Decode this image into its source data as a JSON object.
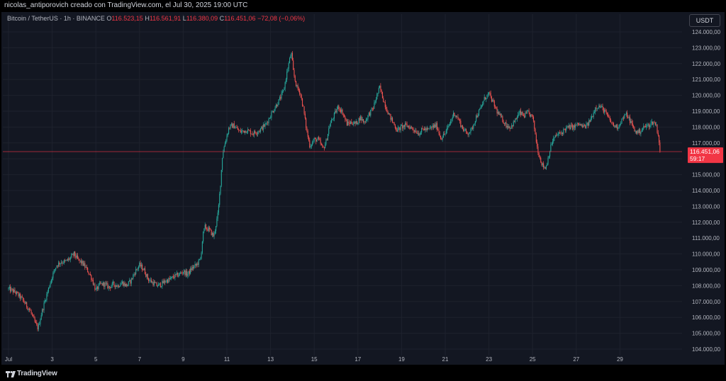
{
  "header": {
    "credit": "nicolas_antiporovich creado con TradingView.com, el Jul 30, 2025 19:00 UTC"
  },
  "legend": {
    "symbol": "Bitcoin / TetherUS · 1h · BINANCE",
    "o_label": "O",
    "o": "116.523,15",
    "h_label": "H",
    "h": "116.561,91",
    "l_label": "L",
    "l": "116.380,09",
    "c_label": "C",
    "c": "116.451,06",
    "change": "−72,08 (−0,06%)"
  },
  "currency_button": "USDT",
  "last_price": {
    "value": 116451.06,
    "label": "116.451,06",
    "countdown": "59:17"
  },
  "footer": {
    "brand": "TradingView"
  },
  "colors": {
    "up": "#26a69a",
    "down": "#ef5350",
    "price_tag": "#f23645",
    "background": "#131722",
    "grid": "#1e222d",
    "axis_text": "#b2b5be"
  },
  "chart_data": {
    "type": "candlestick",
    "timeframe": "1h",
    "x_labels": [
      "Jul",
      "3",
      "5",
      "7",
      "9",
      "11",
      "13",
      "15",
      "17",
      "19",
      "21",
      "23",
      "25",
      "27",
      "29"
    ],
    "y_ticks": [
      "104.000,00",
      "105.000,00",
      "106.000,00",
      "107.000,00",
      "108.000,00",
      "109.000,00",
      "110.000,00",
      "111.000,00",
      "112.000,00",
      "113.000,00",
      "114.000,00",
      "115.000,00",
      "116.000,00",
      "117.000,00",
      "118.000,00",
      "119.000,00",
      "120.000,00",
      "121.000,00",
      "122.000,00",
      "123.000,00",
      "124.000,00"
    ],
    "ylim": [
      103600,
      124400
    ],
    "xlim_days": [
      1,
      31
    ],
    "close_path": [
      [
        1.0,
        107800
      ],
      [
        1.3,
        107600
      ],
      [
        1.6,
        107200
      ],
      [
        1.8,
        106800
      ],
      [
        2.0,
        106400
      ],
      [
        2.2,
        105700
      ],
      [
        2.35,
        105300
      ],
      [
        2.5,
        106200
      ],
      [
        2.7,
        107200
      ],
      [
        2.85,
        107900
      ],
      [
        3.0,
        108600
      ],
      [
        3.2,
        109300
      ],
      [
        3.4,
        109500
      ],
      [
        3.6,
        109500
      ],
      [
        3.8,
        109700
      ],
      [
        4.0,
        110000
      ],
      [
        4.2,
        109600
      ],
      [
        4.4,
        109400
      ],
      [
        4.6,
        109000
      ],
      [
        4.8,
        108500
      ],
      [
        5.0,
        107700
      ],
      [
        5.2,
        108100
      ],
      [
        5.4,
        108100
      ],
      [
        5.6,
        107900
      ],
      [
        5.8,
        108100
      ],
      [
        6.0,
        108000
      ],
      [
        6.2,
        108200
      ],
      [
        6.4,
        108000
      ],
      [
        6.6,
        108300
      ],
      [
        6.8,
        108900
      ],
      [
        7.0,
        109300
      ],
      [
        7.2,
        109000
      ],
      [
        7.4,
        108400
      ],
      [
        7.6,
        108200
      ],
      [
        7.8,
        108000
      ],
      [
        8.0,
        108100
      ],
      [
        8.2,
        108300
      ],
      [
        8.4,
        108400
      ],
      [
        8.6,
        108600
      ],
      [
        8.8,
        108700
      ],
      [
        9.0,
        108900
      ],
      [
        9.2,
        108700
      ],
      [
        9.4,
        109100
      ],
      [
        9.6,
        109300
      ],
      [
        9.8,
        109700
      ],
      [
        9.9,
        111200
      ],
      [
        10.0,
        111700
      ],
      [
        10.2,
        111500
      ],
      [
        10.4,
        111100
      ],
      [
        10.6,
        112600
      ],
      [
        10.7,
        114300
      ],
      [
        10.8,
        116300
      ],
      [
        10.95,
        117200
      ],
      [
        11.1,
        118000
      ],
      [
        11.3,
        118100
      ],
      [
        11.6,
        117700
      ],
      [
        11.9,
        117800
      ],
      [
        12.2,
        117600
      ],
      [
        12.5,
        117800
      ],
      [
        12.8,
        118200
      ],
      [
        13.1,
        119000
      ],
      [
        13.4,
        119700
      ],
      [
        13.6,
        120300
      ],
      [
        13.8,
        121800
      ],
      [
        13.95,
        122700
      ],
      [
        14.05,
        121400
      ],
      [
        14.2,
        120500
      ],
      [
        14.35,
        120200
      ],
      [
        14.5,
        119200
      ],
      [
        14.65,
        117800
      ],
      [
        14.8,
        116800
      ],
      [
        15.0,
        117200
      ],
      [
        15.2,
        117200
      ],
      [
        15.4,
        116600
      ],
      [
        15.55,
        117100
      ],
      [
        15.7,
        118100
      ],
      [
        15.9,
        118700
      ],
      [
        16.1,
        119300
      ],
      [
        16.3,
        118900
      ],
      [
        16.5,
        118200
      ],
      [
        16.7,
        118300
      ],
      [
        16.9,
        118200
      ],
      [
        17.1,
        118600
      ],
      [
        17.3,
        118300
      ],
      [
        17.5,
        118800
      ],
      [
        17.7,
        119200
      ],
      [
        17.85,
        119900
      ],
      [
        18.0,
        120500
      ],
      [
        18.15,
        119800
      ],
      [
        18.3,
        119200
      ],
      [
        18.45,
        118700
      ],
      [
        18.6,
        118300
      ],
      [
        18.8,
        117800
      ],
      [
        19.0,
        118000
      ],
      [
        19.2,
        118100
      ],
      [
        19.4,
        118000
      ],
      [
        19.6,
        117800
      ],
      [
        19.8,
        117600
      ],
      [
        20.0,
        117900
      ],
      [
        20.2,
        117800
      ],
      [
        20.4,
        118000
      ],
      [
        20.6,
        118100
      ],
      [
        20.8,
        117300
      ],
      [
        21.0,
        117600
      ],
      [
        21.2,
        118200
      ],
      [
        21.4,
        118900
      ],
      [
        21.6,
        118500
      ],
      [
        21.8,
        117900
      ],
      [
        22.0,
        117600
      ],
      [
        22.2,
        117800
      ],
      [
        22.4,
        118600
      ],
      [
        22.6,
        119100
      ],
      [
        22.8,
        119800
      ],
      [
        23.0,
        120100
      ],
      [
        23.2,
        119500
      ],
      [
        23.4,
        118900
      ],
      [
        23.6,
        118500
      ],
      [
        23.8,
        118100
      ],
      [
        24.0,
        118000
      ],
      [
        24.2,
        118400
      ],
      [
        24.4,
        118900
      ],
      [
        24.6,
        118700
      ],
      [
        24.8,
        118900
      ],
      [
        25.0,
        118600
      ],
      [
        25.1,
        117800
      ],
      [
        25.2,
        116800
      ],
      [
        25.3,
        116200
      ],
      [
        25.45,
        115600
      ],
      [
        25.6,
        115400
      ],
      [
        25.75,
        116300
      ],
      [
        25.9,
        117100
      ],
      [
        26.1,
        117500
      ],
      [
        26.3,
        117600
      ],
      [
        26.5,
        117900
      ],
      [
        26.7,
        118000
      ],
      [
        26.9,
        118000
      ],
      [
        27.1,
        118200
      ],
      [
        27.3,
        118000
      ],
      [
        27.5,
        118100
      ],
      [
        27.7,
        118600
      ],
      [
        27.9,
        119300
      ],
      [
        28.1,
        119300
      ],
      [
        28.3,
        119000
      ],
      [
        28.5,
        118500
      ],
      [
        28.7,
        118100
      ],
      [
        28.9,
        118000
      ],
      [
        29.1,
        118500
      ],
      [
        29.3,
        118800
      ],
      [
        29.5,
        118300
      ],
      [
        29.7,
        117700
      ],
      [
        29.9,
        117700
      ],
      [
        30.1,
        118000
      ],
      [
        30.3,
        118100
      ],
      [
        30.5,
        118300
      ],
      [
        30.65,
        118200
      ],
      [
        30.75,
        117500
      ],
      [
        30.85,
        116451
      ]
    ]
  }
}
